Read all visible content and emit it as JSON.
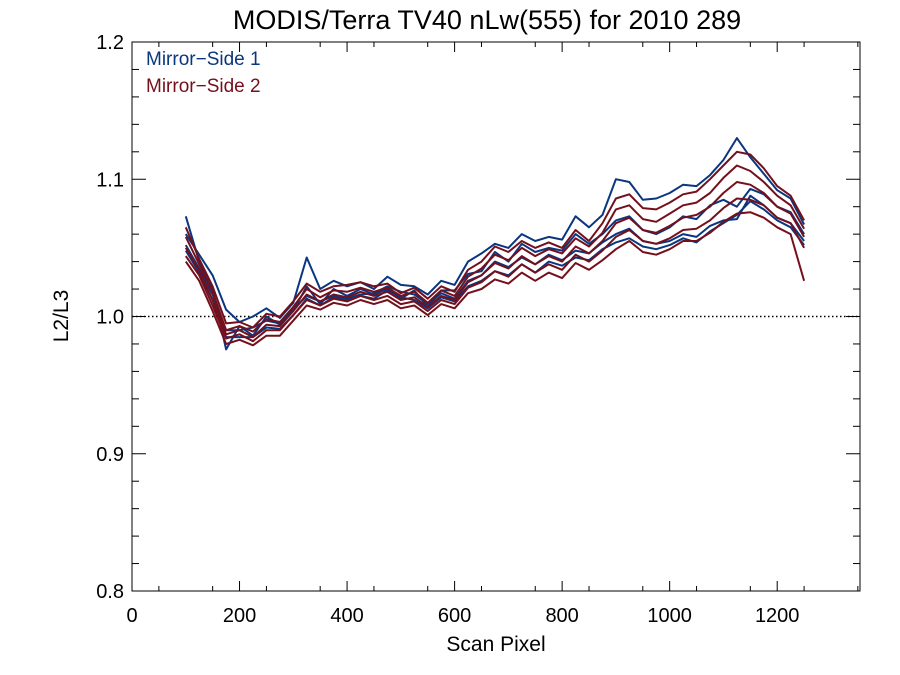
{
  "colors": {
    "mirror_side_1": "#0a3680",
    "mirror_side_2": "#74101c",
    "axes": "#000000",
    "reference_line": "#000000"
  },
  "chart_data": {
    "type": "line",
    "title": "MODIS/Terra TV40 nLw(555) for 2010 289",
    "xlabel": "Scan Pixel",
    "ylabel": "L2/L3",
    "xlim": [
      0,
      1354
    ],
    "ylim": [
      0.8,
      1.2
    ],
    "x_ticks": [
      0,
      200,
      400,
      600,
      800,
      1000,
      1200
    ],
    "x_tick_labels": [
      "0",
      "200",
      "400",
      "600",
      "800",
      "1000",
      "1200"
    ],
    "y_ticks": [
      0.8,
      0.9,
      1.0,
      1.1,
      1.2
    ],
    "y_tick_labels": [
      "0.8",
      "0.9",
      "1.0",
      "1.1",
      "1.2"
    ],
    "reference_line": {
      "y": 1.0,
      "style": "dotted"
    },
    "legend": {
      "placement": "top-left",
      "entries": [
        {
          "label": "Mirror−Side 1",
          "color_key": "mirror_side_1"
        },
        {
          "label": "Mirror−Side 2",
          "color_key": "mirror_side_2"
        }
      ]
    },
    "x": [
      100,
      125,
      150,
      175,
      200,
      225,
      250,
      275,
      300,
      325,
      350,
      375,
      400,
      425,
      450,
      475,
      500,
      525,
      550,
      575,
      600,
      625,
      650,
      675,
      700,
      725,
      750,
      775,
      800,
      825,
      850,
      875,
      900,
      925,
      950,
      975,
      1000,
      1025,
      1050,
      1075,
      1100,
      1125,
      1150,
      1175,
      1200,
      1225,
      1250
    ],
    "series": [
      {
        "group": "mirror_side_1",
        "values": [
          1.073,
          1.04,
          1.02,
          0.976,
          0.993,
          0.986,
          1.0,
          0.994,
          1.004,
          1.022,
          1.009,
          1.02,
          1.015,
          1.02,
          1.016,
          1.02,
          1.013,
          1.019,
          1.007,
          1.019,
          1.019,
          1.031,
          1.033,
          1.047,
          1.04,
          1.053,
          1.047,
          1.05,
          1.048,
          1.06,
          1.053,
          1.06,
          1.07,
          1.073,
          1.063,
          1.06,
          1.065,
          1.073,
          1.071,
          1.081,
          1.085,
          1.08,
          1.093,
          1.089,
          1.08,
          1.076,
          1.06
        ]
      },
      {
        "group": "mirror_side_1",
        "values": [
          1.06,
          1.045,
          1.03,
          1.005,
          0.996,
          1.0,
          1.006,
          0.999,
          1.01,
          1.043,
          1.02,
          1.026,
          1.022,
          1.025,
          1.02,
          1.029,
          1.023,
          1.022,
          1.016,
          1.026,
          1.023,
          1.04,
          1.046,
          1.053,
          1.05,
          1.06,
          1.055,
          1.058,
          1.056,
          1.073,
          1.065,
          1.074,
          1.1,
          1.098,
          1.085,
          1.086,
          1.09,
          1.096,
          1.095,
          1.103,
          1.114,
          1.13,
          1.116,
          1.104,
          1.092,
          1.086,
          1.067
        ]
      },
      {
        "group": "mirror_side_1",
        "values": [
          1.052,
          1.035,
          1.016,
          0.99,
          0.99,
          0.992,
          0.997,
          0.995,
          1.005,
          1.015,
          1.011,
          1.015,
          1.013,
          1.016,
          1.017,
          1.022,
          1.018,
          1.016,
          1.009,
          1.017,
          1.013,
          1.026,
          1.03,
          1.04,
          1.036,
          1.043,
          1.038,
          1.045,
          1.041,
          1.048,
          1.046,
          1.054,
          1.06,
          1.064,
          1.055,
          1.053,
          1.055,
          1.06,
          1.058,
          1.066,
          1.07,
          1.071,
          1.088,
          1.081,
          1.072,
          1.068,
          1.055
        ]
      },
      {
        "group": "mirror_side_1",
        "values": [
          1.048,
          1.032,
          1.012,
          0.985,
          0.985,
          0.985,
          0.992,
          0.991,
          1.001,
          1.013,
          1.008,
          1.014,
          1.012,
          1.015,
          1.013,
          1.019,
          1.014,
          1.012,
          1.006,
          1.014,
          1.011,
          1.022,
          1.026,
          1.033,
          1.03,
          1.038,
          1.032,
          1.04,
          1.037,
          1.043,
          1.041,
          1.049,
          1.054,
          1.057,
          1.051,
          1.049,
          1.052,
          1.057,
          1.054,
          1.062,
          1.068,
          1.074,
          1.084,
          1.078,
          1.07,
          1.065,
          1.052
        ]
      },
      {
        "group": "mirror_side_2",
        "values": [
          1.065,
          1.042,
          1.022,
          0.995,
          0.996,
          0.992,
          1.002,
          1.0,
          1.011,
          1.024,
          1.018,
          1.022,
          1.023,
          1.025,
          1.022,
          1.024,
          1.017,
          1.021,
          1.013,
          1.022,
          1.018,
          1.034,
          1.04,
          1.051,
          1.047,
          1.055,
          1.05,
          1.054,
          1.05,
          1.063,
          1.055,
          1.068,
          1.086,
          1.089,
          1.079,
          1.078,
          1.083,
          1.089,
          1.091,
          1.1,
          1.11,
          1.12,
          1.118,
          1.108,
          1.095,
          1.088,
          1.07
        ]
      },
      {
        "group": "mirror_side_2",
        "values": [
          1.058,
          1.038,
          1.018,
          0.99,
          0.993,
          0.989,
          0.998,
          0.996,
          1.007,
          1.02,
          1.014,
          1.019,
          1.018,
          1.021,
          1.018,
          1.021,
          1.015,
          1.018,
          1.01,
          1.019,
          1.015,
          1.029,
          1.035,
          1.045,
          1.041,
          1.05,
          1.044,
          1.049,
          1.046,
          1.057,
          1.051,
          1.061,
          1.078,
          1.081,
          1.071,
          1.069,
          1.075,
          1.081,
          1.083,
          1.09,
          1.101,
          1.11,
          1.106,
          1.098,
          1.088,
          1.081,
          1.064
        ]
      },
      {
        "group": "mirror_side_2",
        "values": [
          1.05,
          1.034,
          1.012,
          0.987,
          0.99,
          0.985,
          0.994,
          0.993,
          1.004,
          1.016,
          1.011,
          1.016,
          1.014,
          1.018,
          1.015,
          1.018,
          1.012,
          1.014,
          1.007,
          1.015,
          1.012,
          1.025,
          1.03,
          1.039,
          1.035,
          1.044,
          1.038,
          1.044,
          1.04,
          1.051,
          1.046,
          1.055,
          1.068,
          1.072,
          1.063,
          1.061,
          1.066,
          1.072,
          1.074,
          1.08,
          1.09,
          1.098,
          1.096,
          1.09,
          1.08,
          1.075,
          1.058
        ]
      },
      {
        "group": "mirror_side_2",
        "values": [
          1.044,
          1.03,
          1.008,
          0.984,
          0.987,
          0.982,
          0.99,
          0.99,
          1.001,
          1.012,
          1.008,
          1.013,
          1.011,
          1.015,
          1.012,
          1.015,
          1.009,
          1.011,
          1.004,
          1.012,
          1.009,
          1.021,
          1.025,
          1.033,
          1.029,
          1.038,
          1.032,
          1.038,
          1.034,
          1.045,
          1.04,
          1.048,
          1.058,
          1.063,
          1.055,
          1.053,
          1.057,
          1.063,
          1.064,
          1.07,
          1.079,
          1.086,
          1.085,
          1.081,
          1.072,
          1.068,
          1.05
        ]
      },
      {
        "group": "mirror_side_2",
        "values": [
          1.04,
          1.026,
          1.004,
          0.98,
          0.983,
          0.979,
          0.986,
          0.986,
          0.997,
          1.008,
          1.005,
          1.01,
          1.008,
          1.012,
          1.009,
          1.012,
          1.006,
          1.008,
          1.001,
          1.009,
          1.006,
          1.017,
          1.02,
          1.027,
          1.024,
          1.032,
          1.026,
          1.032,
          1.028,
          1.039,
          1.034,
          1.041,
          1.049,
          1.055,
          1.047,
          1.045,
          1.049,
          1.055,
          1.055,
          1.061,
          1.069,
          1.075,
          1.076,
          1.072,
          1.065,
          1.06,
          1.026
        ]
      }
    ]
  }
}
